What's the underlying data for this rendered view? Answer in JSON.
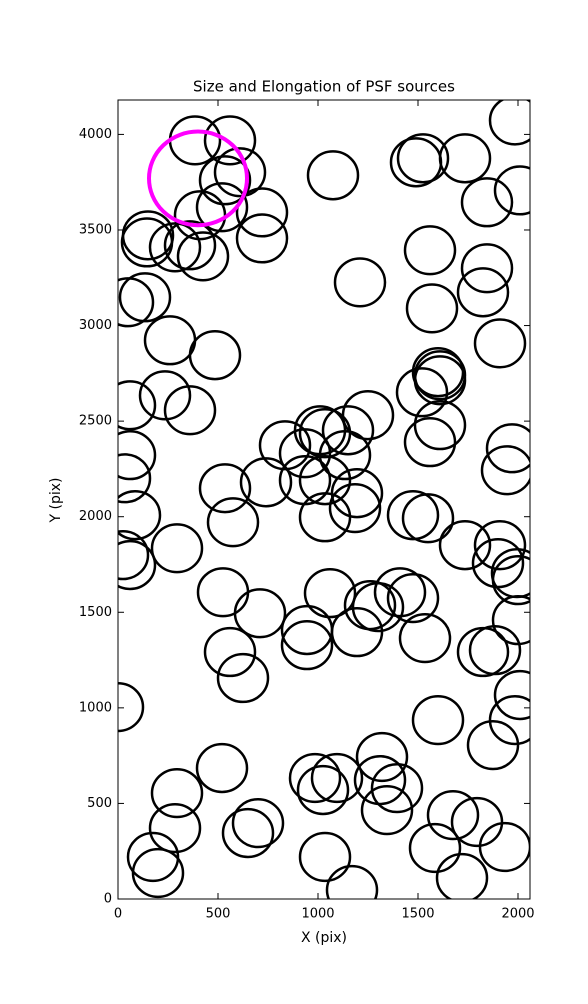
{
  "chart_data": {
    "type": "scatter",
    "title": "Size and Elongation of PSF sources",
    "xlabel": "X (pix)",
    "ylabel": "Y (pix)",
    "xlim": [
      0,
      2060
    ],
    "ylim": [
      0,
      4180
    ],
    "xticks": [
      0,
      500,
      1000,
      1500,
      2000
    ],
    "yticks": [
      0,
      500,
      1000,
      1500,
      2000,
      2500,
      3000,
      3500,
      4000
    ],
    "series": [
      {
        "color": "#000000",
        "radius": 125,
        "x": [
          385,
          560,
          610,
          535,
          410,
          520,
          720,
          720,
          150,
          145,
          285,
          360,
          425,
          135,
          50,
          260,
          485,
          235,
          60,
          360,
          60,
          35,
          85,
          25,
          60,
          295,
          535,
          575,
          740,
          835,
          935,
          1010,
          1035,
          1135,
          1150,
          1250,
          935,
          1035,
          1195,
          1185,
          1035,
          525,
          710,
          560,
          625,
          945,
          945,
          1060,
          1195,
          1260,
          1300,
          1410,
          1475,
          1535,
          1475,
          1550,
          1735,
          1910,
          1900,
          1995,
          2000,
          2000,
          1825,
          1885,
          2010,
          1985,
          1600,
          1875,
          0,
          520,
          295,
          285,
          175,
          200,
          650,
          700,
          985,
          1025,
          1095,
          1320,
          1310,
          1395,
          1345,
          1035,
          1170,
          1585,
          1675,
          1795,
          1935,
          1720,
          1075,
          1210,
          1490,
          1525,
          1735,
          1845,
          2010,
          1985,
          1560,
          1570,
          1845,
          1825,
          1910,
          1610,
          1610,
          1600,
          1520,
          1610,
          1560,
          1970,
          1945
        ],
        "y": [
          3969,
          3969,
          3802,
          3760,
          3577,
          3619,
          3592,
          3456,
          3472,
          3435,
          3409,
          3420,
          3362,
          3148,
          3122,
          2923,
          2845,
          2635,
          2583,
          2557,
          2322,
          2201,
          2008,
          1799,
          1747,
          1835,
          2149,
          1971,
          2180,
          2374,
          2332,
          2452,
          2437,
          2322,
          2452,
          2531,
          2191,
          2191,
          2123,
          2045,
          1997,
          1605,
          1495,
          1292,
          1156,
          1407,
          1328,
          1600,
          1396,
          1537,
          1527,
          1605,
          1574,
          1365,
          2008,
          1992,
          1851,
          1851,
          1757,
          1705,
          1668,
          1459,
          1292,
          1302,
          1067,
          936,
          936,
          805,
          1004,
          685,
          554,
          371,
          220,
          136,
          345,
          397,
          633,
          570,
          633,
          743,
          622,
          580,
          465,
          220,
          47,
          267,
          439,
          403,
          272,
          110,
          3786,
          3226,
          3854,
          3875,
          3875,
          3645,
          3707,
          4073,
          3394,
          3090,
          3300,
          3174,
          2907,
          2740,
          2714,
          2756,
          2651,
          2479,
          2390,
          2358,
          2243
        ]
      },
      {
        "color": "#ff00ff",
        "radius": 245,
        "x": [
          400
        ],
        "y": [
          3770
        ]
      }
    ]
  }
}
